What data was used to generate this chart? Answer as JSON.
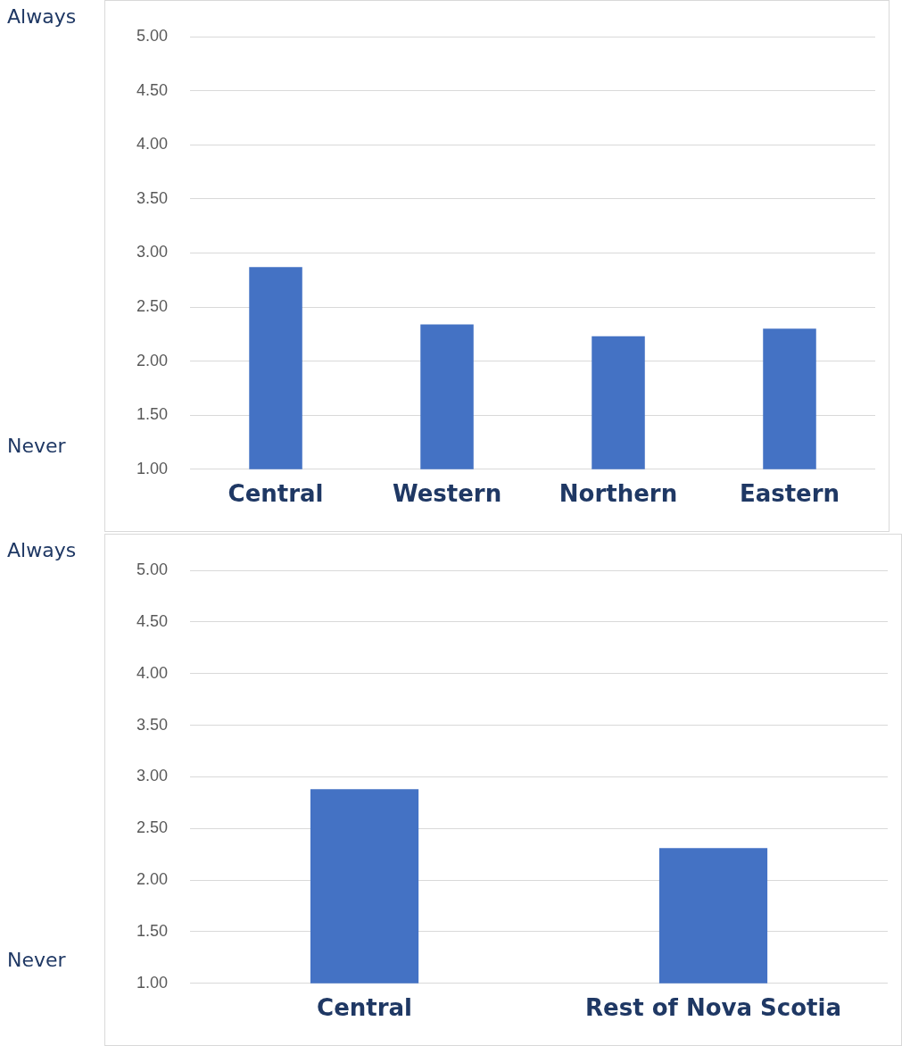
{
  "chart_data": [
    {
      "type": "bar",
      "categories": [
        "Central",
        "Western",
        "Northern",
        "Eastern"
      ],
      "values": [
        2.87,
        2.34,
        2.23,
        2.3
      ],
      "color": "#4472c4",
      "ylim": [
        1,
        5
      ],
      "yticks": [
        {
          "value": 1,
          "label": "1.00"
        },
        {
          "value": 1.5,
          "label": "1.50"
        },
        {
          "value": 2,
          "label": "2.00"
        },
        {
          "value": 2.5,
          "label": "2.50"
        },
        {
          "value": 3,
          "label": "3.00"
        },
        {
          "value": 3.5,
          "label": "3.50"
        },
        {
          "value": 4,
          "label": "4.00"
        },
        {
          "value": 4.5,
          "label": "4.50"
        },
        {
          "value": 5,
          "label": "5.00"
        }
      ],
      "grid": "y",
      "annotations": [
        "Always",
        "Never"
      ]
    },
    {
      "type": "bar",
      "categories": [
        "Central",
        "Rest of Nova Scotia"
      ],
      "values": [
        2.88,
        2.31
      ],
      "color": "#4472c4",
      "ylim": [
        1,
        5
      ],
      "yticks": [
        {
          "value": 1,
          "label": "1.00"
        },
        {
          "value": 1.5,
          "label": "1.50"
        },
        {
          "value": 2,
          "label": "2.00"
        },
        {
          "value": 2.5,
          "label": "2.50"
        },
        {
          "value": 3,
          "label": "3.00"
        },
        {
          "value": 3.5,
          "label": "3.50"
        },
        {
          "value": 4,
          "label": "4.00"
        },
        {
          "value": 4.5,
          "label": "4.50"
        },
        {
          "value": 5,
          "label": "5.00"
        }
      ],
      "grid": "y",
      "annotations": [
        "Always",
        "Never"
      ]
    }
  ]
}
